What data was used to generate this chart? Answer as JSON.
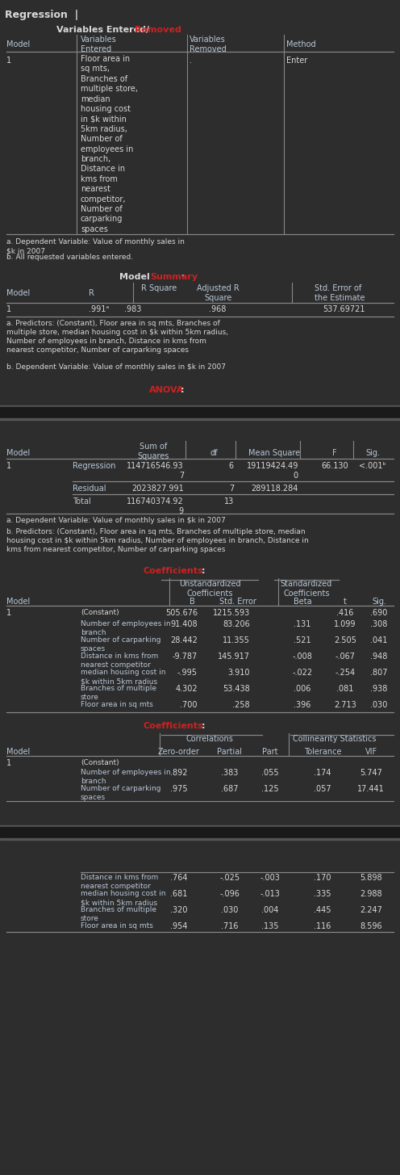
{
  "bg_color": "#2d2d2d",
  "bg_color2": "#363636",
  "text_color": "#d8d8d8",
  "header_color": "#b8c8d8",
  "red_color": "#cc2222",
  "blue_color": "#4488cc",
  "separator_dark": "#1a1a1a",
  "separator_light": "#555555",
  "line_color": "#888888",
  "var_entered": "Floor area in\nsq mts,\nBranches of\nmultiple store,\nmedian\nhousing cost\nin $k within\n5km radius,\nNumber of\nemployees in\nbranch,\nDistance in\nkms from\nnearest\ncompetitor,\nNumber of\ncarparking\nspaces",
  "fn1a": "a. Dependent Variable: Value of monthly sales in\n$k in 2007",
  "fn1b": "b. All requested variables entered.",
  "ms_row": [
    "1",
    ".991ᵃ",
    ".983",
    ".968",
    "537.69721"
  ],
  "fn2a": "a. Predictors: (Constant), Floor area in sq mts, Branches of\nmultiple store, median housing cost in $k within 5km radius,\nNumber of employees in branch, Distance in kms from\nnearest competitor, Number of carparking spaces",
  "fn2b": "b. Dependent Variable: Value of monthly sales in $k in 2007",
  "fn3a": "a. Dependent Variable: Value of monthly sales in $k in 2007",
  "fn3b": "b. Predictors: (Constant), Floor area in sq mts, Branches of multiple store, median\nhousing cost in $k within 5km radius, Number of employees in branch, Distance in\nkms from nearest competitor, Number of carparking spaces",
  "anova_rows": [
    [
      "1",
      "Regression",
      "114716546.93\n7",
      "6",
      "19119424.49\n0",
      "66.130",
      "<.001ᵇ"
    ],
    [
      "",
      "Residual",
      "2023827.991",
      "7",
      "289118.284",
      "",
      ""
    ],
    [
      "",
      "Total",
      "116740374.92\n9",
      "13",
      "",
      "",
      ""
    ]
  ],
  "coeff_rows1": [
    [
      "1",
      "(Constant)",
      "505.676",
      "1215.593",
      "",
      ".416",
      ".690"
    ],
    [
      "",
      "Number of employees in\nbranch",
      "91.408",
      "83.206",
      ".131",
      "1.099",
      ".308"
    ],
    [
      "",
      "Number of carparking\nspaces",
      "28.442",
      "11.355",
      ".521",
      "2.505",
      ".041"
    ],
    [
      "",
      "Distance in kms from\nnearest competitor",
      "-9.787",
      "145.917",
      "-.008",
      "-.067",
      ".948"
    ],
    [
      "",
      "median housing cost in\n$k within 5km radius",
      "-.995",
      "3.910",
      "-.022",
      "-.254",
      ".807"
    ],
    [
      "",
      "Branches of multiple\nstore",
      "4.302",
      "53.438",
      ".006",
      ".081",
      ".938"
    ],
    [
      "",
      "Floor area in sq mts",
      ".700",
      ".258",
      ".396",
      "2.713",
      ".030"
    ]
  ],
  "coeff_rows2": [
    [
      "1",
      "(Constant)",
      "",
      "",
      "",
      "",
      ""
    ],
    [
      "",
      "Number of employees in\nbranch",
      ".892",
      ".383",
      ".055",
      ".174",
      "5.747"
    ],
    [
      "",
      "Number of carparking\nspaces",
      ".975",
      ".687",
      ".125",
      ".057",
      "17.441"
    ],
    [
      "",
      "Distance in kms from\nnearest competitor",
      ".764",
      "-.025",
      "-.003",
      ".170",
      "5.898"
    ],
    [
      "",
      "median housing cost in\n$k within 5km radius",
      ".681",
      "-.096",
      "-.013",
      ".335",
      "2.988"
    ],
    [
      "",
      "Branches of multiple\nstore",
      ".320",
      ".030",
      ".004",
      ".445",
      "2.247"
    ],
    [
      "",
      "Floor area in sq mts",
      ".954",
      ".716",
      ".135",
      ".116",
      "8.596"
    ]
  ]
}
